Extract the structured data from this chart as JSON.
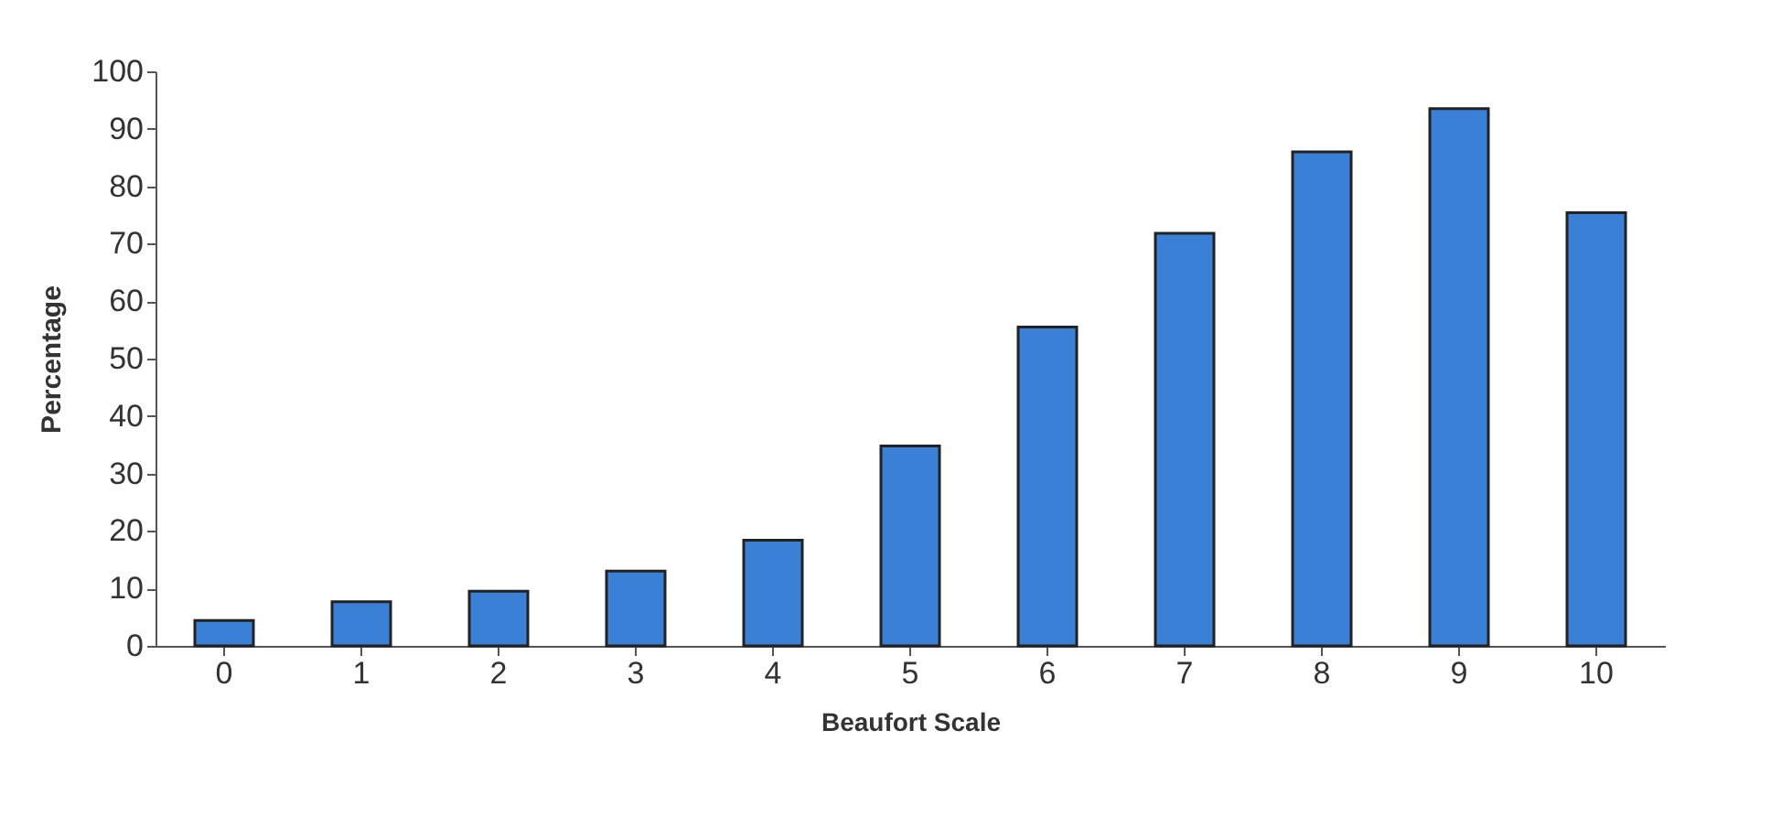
{
  "chart_data": {
    "type": "bar",
    "xlabel": "Beaufort Scale",
    "ylabel": "Percentage",
    "categories": [
      "0",
      "1",
      "2",
      "3",
      "4",
      "5",
      "6",
      "7",
      "8",
      "9",
      "10"
    ],
    "values": [
      4.4,
      7.7,
      9.5,
      13,
      18.4,
      34.8,
      55.5,
      71.8,
      86,
      93.5,
      75.4
    ],
    "color": "#3a80d6",
    "ylim": [
      0,
      100
    ],
    "yticks": [
      0,
      10,
      20,
      30,
      40,
      50,
      60,
      70,
      80,
      90,
      100
    ],
    "grid": false
  }
}
